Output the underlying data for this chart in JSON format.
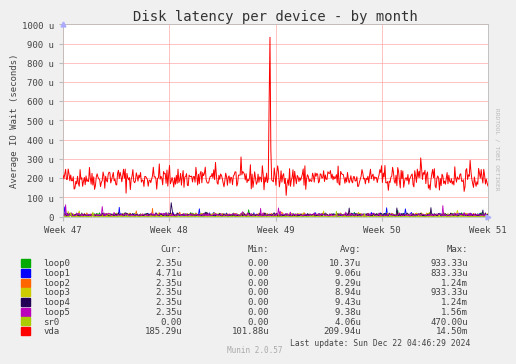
{
  "title": "Disk latency per device - by month",
  "ylabel": "Average IO Wait (seconds)",
  "background_color": "#f0f0f0",
  "plot_bg_color": "#ffffff",
  "grid_color": "#ffaaaa",
  "ytick_labels": [
    "0",
    "100 u",
    "200 u",
    "300 u",
    "400 u",
    "500 u",
    "600 u",
    "700 u",
    "800 u",
    "900 u",
    "1000 u"
  ],
  "ytick_values": [
    0,
    100,
    200,
    300,
    400,
    500,
    600,
    700,
    800,
    900,
    1000
  ],
  "ylim": [
    0,
    1000
  ],
  "xtick_labels": [
    "Week 47",
    "Week 48",
    "Week 49",
    "Week 50",
    "Week 51"
  ],
  "xtick_positions": [
    0.0,
    0.25,
    0.5,
    0.75,
    1.0
  ],
  "legend_entries": [
    {
      "label": "loop0",
      "color": "#00aa00"
    },
    {
      "label": "loop1",
      "color": "#0000ff"
    },
    {
      "label": "loop2",
      "color": "#ff6600"
    },
    {
      "label": "loop3",
      "color": "#cccc00"
    },
    {
      "label": "loop4",
      "color": "#220055"
    },
    {
      "label": "loop5",
      "color": "#bb00bb"
    },
    {
      "label": "sr0",
      "color": "#aacc00"
    },
    {
      "label": "vda",
      "color": "#ff0000"
    }
  ],
  "legend_stats": [
    {
      "label": "loop0",
      "cur": "2.35u",
      "min": "0.00",
      "avg": "10.37u",
      "max": "933.33u"
    },
    {
      "label": "loop1",
      "cur": "4.71u",
      "min": "0.00",
      "avg": "9.06u",
      "max": "833.33u"
    },
    {
      "label": "loop2",
      "cur": "2.35u",
      "min": "0.00",
      "avg": "9.29u",
      "max": "1.24m"
    },
    {
      "label": "loop3",
      "cur": "2.35u",
      "min": "0.00",
      "avg": "8.94u",
      "max": "933.33u"
    },
    {
      "label": "loop4",
      "cur": "2.35u",
      "min": "0.00",
      "avg": "9.43u",
      "max": "1.24m"
    },
    {
      "label": "loop5",
      "cur": "2.35u",
      "min": "0.00",
      "avg": "9.38u",
      "max": "1.56m"
    },
    {
      "label": "sr0",
      "cur": "0.00",
      "min": "0.00",
      "avg": "4.06u",
      "max": "470.00u"
    },
    {
      "label": "vda",
      "cur": "185.29u",
      "min": "101.88u",
      "avg": "209.94u",
      "max": "14.50m"
    }
  ],
  "last_update": "Last update: Sun Dec 22 04:46:29 2024",
  "munin_version": "Munin 2.0.57",
  "rrdtool_label": "RRDTOOL / TOBI OETIKER",
  "n_points": 500
}
